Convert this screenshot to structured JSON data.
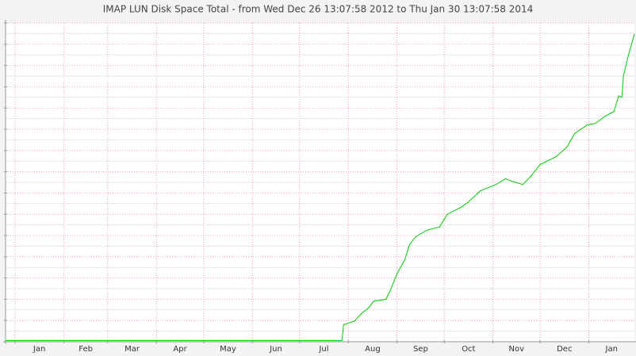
{
  "chart_data": {
    "type": "line",
    "title": "IMAP LUN Disk Space Total - from Wed Dec 26 13:07:58 2012 to Thu Jan 30 13:07:58 2014",
    "color": "#00cc00",
    "x": [
      0,
      214,
      215,
      222,
      226,
      231,
      234,
      242,
      245,
      249,
      254,
      257,
      261,
      268,
      276,
      281,
      289,
      294,
      302,
      312,
      318,
      322,
      329,
      334,
      340,
      350,
      357,
      362,
      370,
      375,
      382,
      387,
      390,
      392,
      393,
      396,
      400
    ],
    "values": [
      0.05,
      0.05,
      0.8,
      0.97,
      1.3,
      1.6,
      1.9,
      2.0,
      2.46,
      3.2,
      3.87,
      4.58,
      4.95,
      5.25,
      5.4,
      6.0,
      6.3,
      6.55,
      7.1,
      7.4,
      7.67,
      7.55,
      7.4,
      7.78,
      8.34,
      8.7,
      9.15,
      9.8,
      10.2,
      10.27,
      10.64,
      10.83,
      11.57,
      11.5,
      12.5,
      13.43,
      14.48
    ],
    "xlim": [
      0,
      400
    ],
    "xticks": [
      {
        "value": 6,
        "label": "Jan"
      },
      {
        "value": 37,
        "label": "Feb"
      },
      {
        "value": 65,
        "label": "Mar"
      },
      {
        "value": 96,
        "label": "Apr"
      },
      {
        "value": 126,
        "label": "May"
      },
      {
        "value": 157,
        "label": "Jun"
      },
      {
        "value": 187,
        "label": "Jul"
      },
      {
        "value": 218,
        "label": "Aug"
      },
      {
        "value": 249,
        "label": "Sep"
      },
      {
        "value": 279,
        "label": "Oct"
      },
      {
        "value": 310,
        "label": "Nov"
      },
      {
        "value": 340,
        "label": "Dec"
      },
      {
        "value": 371,
        "label": "Jan"
      }
    ],
    "ylim": [
      0,
      15
    ],
    "yticks": [
      0,
      1,
      2,
      3,
      4,
      5,
      6,
      7,
      8,
      9,
      10,
      11,
      12,
      13,
      14,
      15
    ],
    "yticks_minor": [
      0.5,
      1.5,
      2.5,
      3.5,
      4.5,
      5.5,
      6.5,
      7.5,
      8.5,
      9.5,
      10.5,
      11.5,
      12.5,
      13.5,
      14.5
    ],
    "grid": true
  }
}
